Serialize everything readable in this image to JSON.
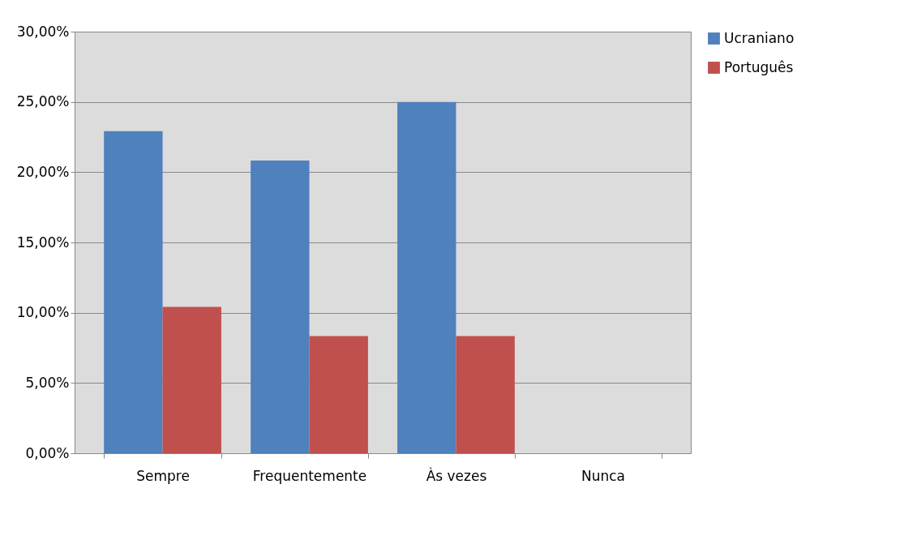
{
  "chart_data": {
    "type": "bar",
    "categories": [
      "Sempre",
      "Frequentemente",
      "Às vezes",
      "Nunca"
    ],
    "series": [
      {
        "name": "Ucraniano",
        "color": "#4f81bd",
        "values": [
          22.92,
          20.83,
          25.0,
          0
        ]
      },
      {
        "name": "Português",
        "color": "#c0504d",
        "values": [
          10.42,
          8.33,
          8.33,
          0
        ]
      }
    ],
    "ylim": [
      0,
      30
    ],
    "yticks": [
      {
        "value": 0,
        "label": "0,00%"
      },
      {
        "value": 5,
        "label": "5,00%"
      },
      {
        "value": 10,
        "label": "10,00%"
      },
      {
        "value": 15,
        "label": "15,00%"
      },
      {
        "value": 20,
        "label": "20,00%"
      },
      {
        "value": 25,
        "label": "25,00%"
      },
      {
        "value": 30,
        "label": "30,00%"
      }
    ],
    "grid": "y",
    "legend": "right"
  }
}
